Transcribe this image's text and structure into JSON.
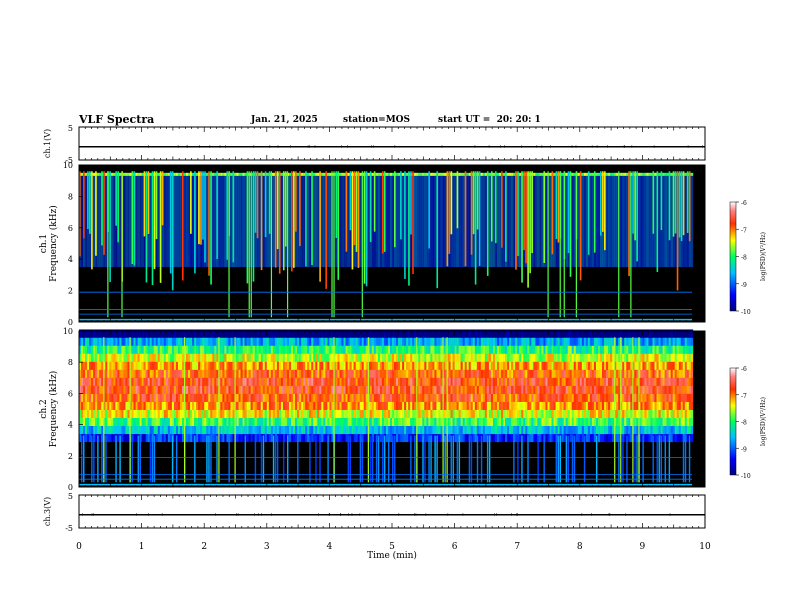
{
  "header": {
    "title": "VLF Spectra",
    "date": "Jan. 21, 2025",
    "station": "station=MOS",
    "start_ut": "start UT =  20: 20: 1"
  },
  "chart_data": [
    {
      "type": "line",
      "panel": "ch1-voltage",
      "ylabel": "ch.1(V)",
      "ylim": [
        -5,
        5
      ],
      "yticks": [
        "5",
        "-5"
      ],
      "x": [
        0,
        10
      ],
      "values": [
        -1.0,
        -1.0
      ]
    },
    {
      "type": "heatmap",
      "panel": "ch1-spectrogram",
      "ylabel": "ch.1\nFrequency (kHz)",
      "ylim": [
        0,
        10
      ],
      "xlim": [
        0,
        10
      ],
      "yticks": [
        "0",
        "2",
        "4",
        "6",
        "8",
        "10"
      ],
      "colorbar": {
        "label": "log(PSD)(V²/Hz)",
        "range": [
          -10,
          -6
        ],
        "ticks": [
          "-6",
          "-7",
          "-8",
          "-9",
          "-10"
        ]
      },
      "band_khz": [
        3.5,
        9.5
      ],
      "baseline_log_psd": -9.3
    },
    {
      "type": "heatmap",
      "panel": "ch2-spectrogram",
      "ylabel": "ch.2\nFrequency (kHz)",
      "ylim": [
        0,
        10
      ],
      "xlim": [
        0,
        10
      ],
      "yticks": [
        "0",
        "2",
        "4",
        "6",
        "8",
        "10"
      ],
      "colorbar": {
        "label": "log(PSD)(V²/Hz)",
        "range": [
          -10,
          -6
        ],
        "ticks": [
          "-6",
          "-7",
          "-8",
          "-9",
          "-10"
        ]
      },
      "band_khz": [
        3.5,
        9.5
      ],
      "peak_khz": 6.2,
      "baseline_log_psd": -7.6
    },
    {
      "type": "line",
      "panel": "ch3-voltage",
      "ylabel": "ch.3(V)",
      "ylim": [
        -5,
        5
      ],
      "yticks": [
        "5",
        "-5"
      ],
      "x": [
        0,
        10
      ],
      "values": [
        -1.0,
        -1.0
      ]
    }
  ],
  "xaxis": {
    "label": "Time (min)",
    "ticks": [
      "0",
      "1",
      "2",
      "3",
      "4",
      "5",
      "6",
      "7",
      "8",
      "9",
      "10"
    ]
  },
  "colors": {
    "background": "#ffffff",
    "plot_bg": "#000000",
    "trace": "#000000"
  }
}
